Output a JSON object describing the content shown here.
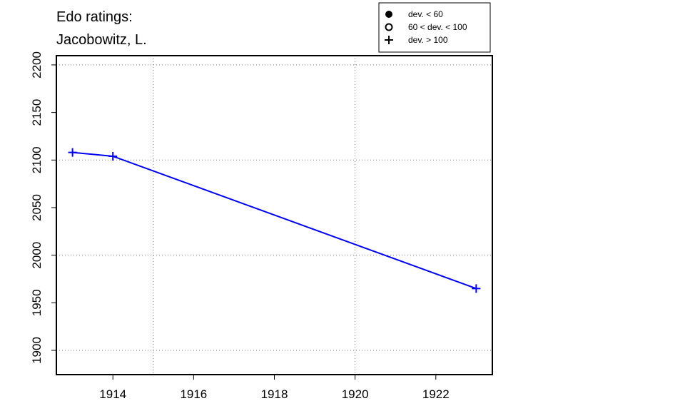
{
  "chart_data": {
    "type": "line",
    "title": [
      "Edo ratings:",
      "Jacobowitz, L."
    ],
    "x": [
      1913,
      1914,
      1923
    ],
    "series": [
      {
        "name": "dev. > 100",
        "color": "#0000ee",
        "values": [
          2108,
          2104,
          1965
        ]
      }
    ],
    "legend": [
      "dev. < 60",
      "60 < dev. < 100",
      "dev. > 100"
    ],
    "legend_position": "top-right",
    "xlim": [
      1912.6,
      1923.4
    ],
    "xticks": [
      1914,
      1916,
      1918,
      1920,
      1922
    ],
    "xgrid": [
      1915,
      1920
    ],
    "ylim": [
      1874.5,
      2209.7
    ],
    "yticks": [
      1900,
      1950,
      2000,
      2050,
      2100,
      2150,
      2200
    ],
    "ygrid": [
      1900,
      2000,
      2100,
      2200
    ],
    "grid": true
  }
}
